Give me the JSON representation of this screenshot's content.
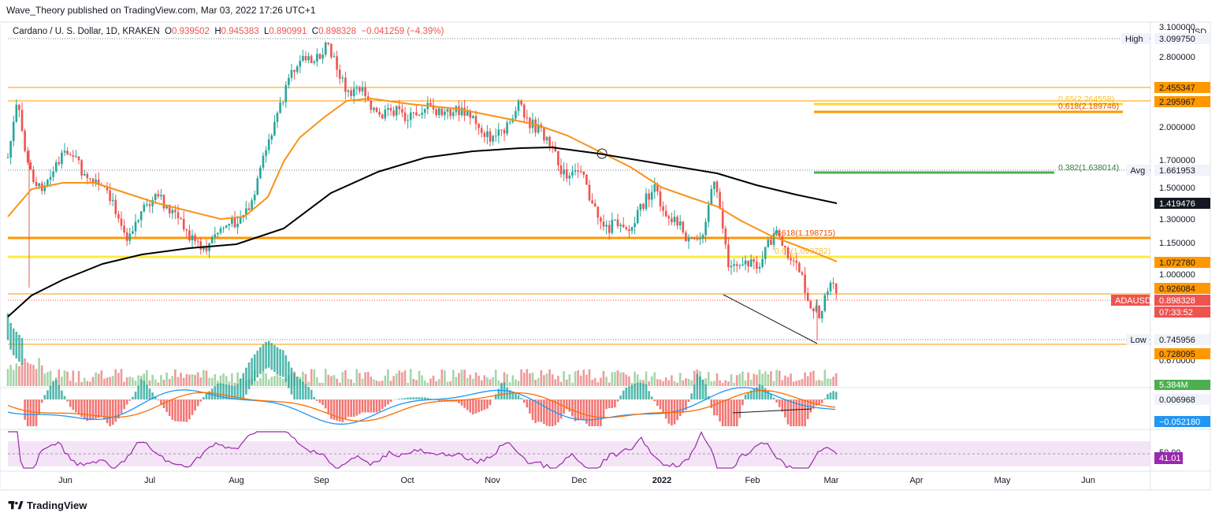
{
  "header": {
    "publisher": "Wave_Theory published on TradingView.com, Mar 03, 2022 17:26 UTC+1"
  },
  "legend": {
    "symbol": "Cardano / U. S. Dollar, 1D, KRAKEN",
    "o_label": "O",
    "o_value": "0.939502",
    "h_label": "H",
    "h_value": "0.945383",
    "l_label": "L",
    "l_value": "0.890991",
    "c_label": "C",
    "c_value": "0.898328",
    "change": "−0.041259 (−4.39%)"
  },
  "footer": {
    "brand": "TradingView"
  },
  "colors": {
    "up": "#26a69a",
    "down": "#ef5350",
    "ma_fast": "#f7931a",
    "ma_slow": "#000000",
    "level_orange": "#ff9800",
    "level_yellow": "#ffeb3b",
    "level_green": "#4caf50",
    "rsi": "#9c27b0",
    "rsi_band": "#f3e5f5",
    "macd": "#2196f3",
    "signal": "#ff6d00"
  },
  "chart_data": {
    "type": "candlestick",
    "price_axis": {
      "ylim": [
        0.64,
        3.1
      ],
      "scale": "log",
      "tick_labels": [
        "3.100000",
        "2.800000",
        "2.000000",
        "1.700000",
        "1.500000",
        "1.300000",
        "1.150000",
        "1.000000",
        "0.670000"
      ],
      "unit_label": "USD"
    },
    "time_axis": {
      "tick_labels": [
        "Jun",
        "Jul",
        "Aug",
        "Sep",
        "Oct",
        "Nov",
        "Dec",
        "2022",
        "Feb",
        "Mar",
        "Apr",
        "May",
        "Jun"
      ]
    },
    "price_badges": [
      {
        "label": "High",
        "value": "3.099750",
        "style": "gray"
      },
      {
        "label": "",
        "value": "2.455347",
        "style": "orange"
      },
      {
        "label": "",
        "value": "2.295967",
        "style": "orange"
      },
      {
        "label": "Avg",
        "value": "1.661953",
        "style": "gray"
      },
      {
        "label": "",
        "value": "1.419476",
        "style": "black"
      },
      {
        "label": "",
        "value": "1.072780",
        "style": "orange"
      },
      {
        "label": "",
        "value": "0.926084",
        "style": "orange"
      },
      {
        "label": "ADAUSD",
        "value": "0.898328",
        "style": "red"
      },
      {
        "label": "",
        "value": "07:33:52",
        "style": "red"
      },
      {
        "label": "Low",
        "value": "0.745956",
        "style": "gray"
      },
      {
        "label": "",
        "value": "0.728095",
        "style": "orange"
      }
    ],
    "fib_levels": [
      {
        "text": "0.65(2.264558)",
        "price": 2.264558,
        "color": "yellow"
      },
      {
        "text": "0.618(2.189746)",
        "price": 2.189746,
        "color": "orange"
      },
      {
        "text": "0.382(1.638014)",
        "price": 1.638014,
        "color": "green"
      },
      {
        "text": "0.618(1.198715)",
        "price": 1.198715,
        "color": "orange"
      },
      {
        "text": "0.65(1.099782)",
        "price": 1.099782,
        "color": "yellow"
      }
    ],
    "horizontal_levels": [
      2.455347,
      2.295967,
      1.2,
      1.1,
      0.926084,
      0.728095
    ],
    "volume_badge": "5.384M",
    "macd_badges": [
      "0.006968",
      "−0.052180"
    ],
    "rsi_badges": {
      "level": "50.00",
      "value": "41.01"
    }
  }
}
